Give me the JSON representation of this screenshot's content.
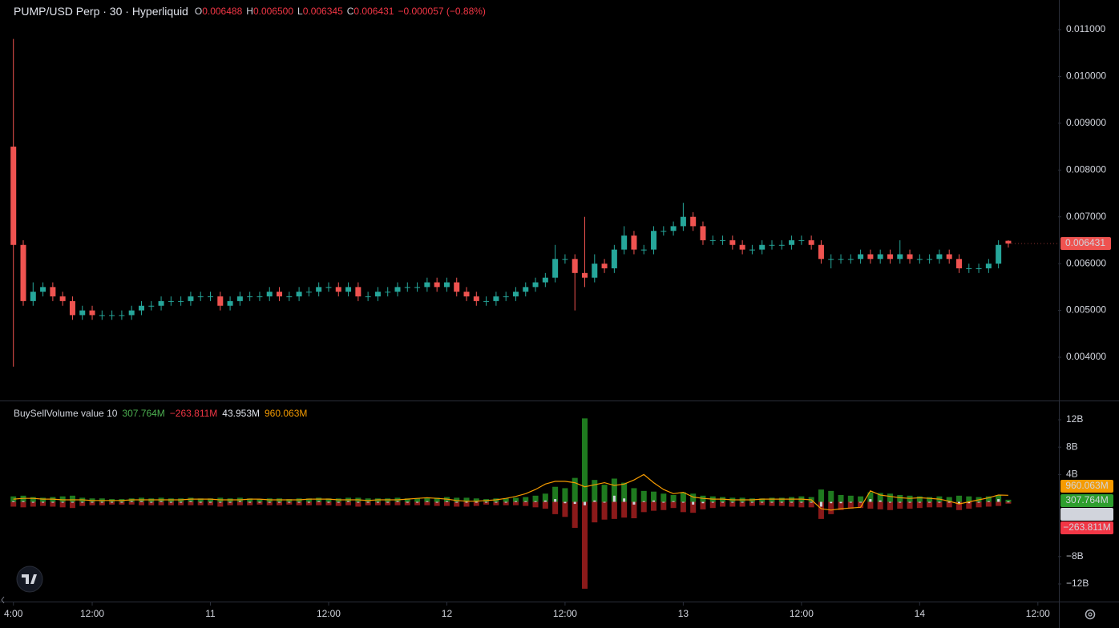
{
  "chart_data": [
    {
      "type": "candlestick",
      "title": "PUMP/USD Perp · 30 · Hyperliquid",
      "up_color": "#26a69a",
      "down_color": "#ef5350",
      "readout": [
        {
          "key": "O",
          "value_label": "0.006488"
        },
        {
          "key": "H",
          "value_label": "0.006500"
        },
        {
          "key": "L",
          "value_label": "0.006345"
        },
        {
          "key": "C",
          "value_label": "0.006431"
        }
      ],
      "change_label": "−0.000057 (−0.88%)",
      "last_price_label": "0.006431",
      "open": [
        0.0085,
        0.0064,
        0.0052,
        0.0054,
        0.0055,
        0.0053,
        0.0052,
        0.0049,
        0.005,
        0.0049,
        0.0049,
        0.0049,
        0.0049,
        0.005,
        0.0051,
        0.0051,
        0.0052,
        0.0052,
        0.0052,
        0.0053,
        0.0053,
        0.0053,
        0.0051,
        0.0052,
        0.0053,
        0.0053,
        0.0053,
        0.0054,
        0.0053,
        0.0053,
        0.0054,
        0.0054,
        0.0055,
        0.0055,
        0.0054,
        0.0055,
        0.0053,
        0.0053,
        0.0054,
        0.0054,
        0.0055,
        0.0055,
        0.0055,
        0.0056,
        0.0055,
        0.0056,
        0.0054,
        0.0053,
        0.0052,
        0.0052,
        0.0053,
        0.0053,
        0.0054,
        0.0055,
        0.0056,
        0.0057,
        0.0061,
        0.0061,
        0.0058,
        0.0057,
        0.006,
        0.0059,
        0.0063,
        0.0066,
        0.0063,
        0.0063,
        0.0067,
        0.0067,
        0.0068,
        0.007,
        0.0068,
        0.0065,
        0.0065,
        0.0065,
        0.0064,
        0.0063,
        0.0063,
        0.0064,
        0.0064,
        0.0064,
        0.0065,
        0.0065,
        0.0064,
        0.0061,
        0.0061,
        0.0061,
        0.0061,
        0.0062,
        0.0061,
        0.0062,
        0.0061,
        0.0062,
        0.0061,
        0.0061,
        0.0061,
        0.0062,
        0.0061,
        0.0059,
        0.0059,
        0.0059,
        0.006,
        0.006488
      ],
      "high": [
        0.0108,
        0.0065,
        0.0056,
        0.0056,
        0.0056,
        0.0054,
        0.0053,
        0.0051,
        0.0051,
        0.005,
        0.005,
        0.005,
        0.0051,
        0.0052,
        0.0052,
        0.0053,
        0.0053,
        0.0053,
        0.0054,
        0.0054,
        0.0054,
        0.0054,
        0.0053,
        0.0054,
        0.0054,
        0.0054,
        0.0055,
        0.0055,
        0.0054,
        0.0055,
        0.0055,
        0.0056,
        0.0056,
        0.0056,
        0.0056,
        0.0056,
        0.0054,
        0.0055,
        0.0055,
        0.0056,
        0.0056,
        0.0056,
        0.0057,
        0.0057,
        0.0057,
        0.0057,
        0.0055,
        0.0054,
        0.0053,
        0.0054,
        0.0054,
        0.0055,
        0.0056,
        0.0057,
        0.0058,
        0.0064,
        0.0062,
        0.0062,
        0.007,
        0.0062,
        0.0061,
        0.0064,
        0.0068,
        0.0067,
        0.0064,
        0.0068,
        0.0068,
        0.0069,
        0.0073,
        0.0071,
        0.0069,
        0.0066,
        0.0066,
        0.0066,
        0.0065,
        0.0064,
        0.0065,
        0.0065,
        0.0065,
        0.0066,
        0.0066,
        0.0066,
        0.0065,
        0.0062,
        0.0062,
        0.0062,
        0.0063,
        0.0063,
        0.0063,
        0.0063,
        0.0065,
        0.0063,
        0.0062,
        0.0062,
        0.0063,
        0.0063,
        0.0062,
        0.006,
        0.006,
        0.0061,
        0.0065,
        0.0065
      ],
      "low": [
        0.0038,
        0.0051,
        0.0051,
        0.0053,
        0.0052,
        0.0051,
        0.0048,
        0.0048,
        0.0048,
        0.0048,
        0.0048,
        0.0048,
        0.0048,
        0.0049,
        0.005,
        0.005,
        0.0051,
        0.0051,
        0.0051,
        0.0052,
        0.0052,
        0.005,
        0.005,
        0.0051,
        0.0052,
        0.0052,
        0.0052,
        0.0052,
        0.0052,
        0.0052,
        0.0053,
        0.0053,
        0.0054,
        0.0053,
        0.0053,
        0.0052,
        0.0052,
        0.0052,
        0.0053,
        0.0053,
        0.0054,
        0.0054,
        0.0054,
        0.0054,
        0.0054,
        0.0053,
        0.0052,
        0.0051,
        0.0051,
        0.0051,
        0.0052,
        0.0052,
        0.0053,
        0.0054,
        0.0055,
        0.0056,
        0.006,
        0.005,
        0.0055,
        0.0056,
        0.0058,
        0.0058,
        0.0062,
        0.0062,
        0.0062,
        0.0062,
        0.0066,
        0.0066,
        0.0067,
        0.0067,
        0.0064,
        0.0064,
        0.0064,
        0.0063,
        0.0062,
        0.0062,
        0.0062,
        0.0063,
        0.0063,
        0.0063,
        0.0064,
        0.0063,
        0.006,
        0.0059,
        0.006,
        0.006,
        0.006,
        0.006,
        0.006,
        0.006,
        0.006,
        0.006,
        0.006,
        0.006,
        0.006,
        0.006,
        0.0058,
        0.0058,
        0.0058,
        0.0058,
        0.0059,
        0.006345
      ],
      "close": [
        0.0064,
        0.0052,
        0.0054,
        0.0055,
        0.0053,
        0.0052,
        0.0049,
        0.005,
        0.0049,
        0.0049,
        0.0049,
        0.0049,
        0.005,
        0.0051,
        0.0051,
        0.0052,
        0.0052,
        0.0052,
        0.0053,
        0.0053,
        0.0053,
        0.0051,
        0.0052,
        0.0053,
        0.0053,
        0.0053,
        0.0054,
        0.0053,
        0.0053,
        0.0054,
        0.0054,
        0.0055,
        0.0055,
        0.0054,
        0.0055,
        0.0053,
        0.0053,
        0.0054,
        0.0054,
        0.0055,
        0.0055,
        0.0055,
        0.0056,
        0.0055,
        0.0056,
        0.0054,
        0.0053,
        0.0052,
        0.0052,
        0.0053,
        0.0053,
        0.0054,
        0.0055,
        0.0056,
        0.0057,
        0.0061,
        0.0061,
        0.0058,
        0.0057,
        0.006,
        0.0059,
        0.0063,
        0.0066,
        0.0063,
        0.0063,
        0.0067,
        0.0067,
        0.0068,
        0.007,
        0.0068,
        0.0065,
        0.0065,
        0.0065,
        0.0064,
        0.0063,
        0.0063,
        0.0064,
        0.0064,
        0.0064,
        0.0065,
        0.0065,
        0.0064,
        0.0061,
        0.0061,
        0.0061,
        0.0061,
        0.0062,
        0.0061,
        0.0062,
        0.0061,
        0.0062,
        0.0061,
        0.0061,
        0.0061,
        0.0062,
        0.0061,
        0.0059,
        0.0059,
        0.0059,
        0.006,
        0.0064,
        0.006431
      ],
      "ylim": [
        0.003076,
        0.011633
      ],
      "yticks": [
        {
          "value": 0.004,
          "label": "0.004000"
        },
        {
          "value": 0.005,
          "label": "0.005000"
        },
        {
          "value": 0.006,
          "label": "0.006000"
        },
        {
          "value": 0.007,
          "label": "0.007000"
        },
        {
          "value": 0.008,
          "label": "0.008000"
        },
        {
          "value": 0.009,
          "label": "0.009000"
        },
        {
          "value": 0.01,
          "label": "0.010000"
        },
        {
          "value": 0.011,
          "label": "0.011000"
        }
      ],
      "xlim": [
        -1.36,
        106.05
      ],
      "xticks": [
        {
          "value": 0,
          "label": "4:00"
        },
        {
          "value": 8,
          "label": "12:00"
        },
        {
          "value": 20,
          "label": "11"
        },
        {
          "value": 32,
          "label": "12:00"
        },
        {
          "value": 44,
          "label": "12"
        },
        {
          "value": 56,
          "label": "12:00"
        },
        {
          "value": 68,
          "label": "13"
        },
        {
          "value": 80,
          "label": "12:00"
        },
        {
          "value": 92,
          "label": "14"
        },
        {
          "value": 104,
          "label": "12:00"
        }
      ]
    },
    {
      "type": "volume",
      "title": "BuySellVolume value 10",
      "series": [
        {
          "name": "Buy",
          "type": "bar",
          "color": "#1f7a1f",
          "text_color": "#4caf50",
          "last_value_label": "307.764M",
          "values": [
            0.8,
            0.9,
            0.7,
            0.6,
            0.7,
            0.8,
            0.9,
            0.6,
            0.5,
            0.5,
            0.4,
            0.4,
            0.5,
            0.6,
            0.5,
            0.6,
            0.5,
            0.5,
            0.6,
            0.5,
            0.5,
            0.6,
            0.5,
            0.6,
            0.5,
            0.4,
            0.5,
            0.5,
            0.4,
            0.5,
            0.5,
            0.6,
            0.5,
            0.5,
            0.6,
            0.6,
            0.5,
            0.5,
            0.5,
            0.6,
            0.5,
            0.5,
            0.6,
            0.6,
            0.7,
            0.6,
            0.6,
            0.5,
            0.4,
            0.5,
            0.5,
            0.6,
            0.7,
            0.9,
            1.2,
            2.2,
            2.0,
            3.5,
            12.2,
            3.2,
            2.5,
            3.4,
            2.8,
            2.0,
            1.6,
            1.5,
            1.2,
            1.0,
            1.4,
            1.2,
            0.9,
            0.8,
            0.7,
            0.6,
            0.6,
            0.5,
            0.5,
            0.6,
            0.6,
            0.7,
            0.8,
            0.7,
            1.8,
            1.6,
            1.0,
            0.9,
            0.8,
            1.4,
            1.3,
            1.2,
            1.0,
            0.9,
            0.8,
            0.7,
            0.8,
            0.7,
            0.9,
            0.8,
            0.7,
            0.8,
            1.0,
            0.307764
          ]
        },
        {
          "name": "Sell",
          "type": "bar",
          "color": "#8b1a1a",
          "text_color": "#f23645",
          "last_value_label": "−263.811M",
          "values": [
            -0.7,
            -0.8,
            -0.7,
            -0.6,
            -0.7,
            -0.8,
            -0.9,
            -0.6,
            -0.5,
            -0.5,
            -0.4,
            -0.4,
            -0.4,
            -0.5,
            -0.5,
            -0.5,
            -0.5,
            -0.5,
            -0.5,
            -0.5,
            -0.5,
            -0.7,
            -0.5,
            -0.5,
            -0.5,
            -0.4,
            -0.5,
            -0.5,
            -0.4,
            -0.5,
            -0.5,
            -0.5,
            -0.5,
            -0.6,
            -0.5,
            -0.7,
            -0.5,
            -0.5,
            -0.5,
            -0.5,
            -0.5,
            -0.5,
            -0.5,
            -0.6,
            -0.6,
            -0.7,
            -0.7,
            -0.6,
            -0.4,
            -0.5,
            -0.5,
            -0.5,
            -0.6,
            -0.8,
            -1.0,
            -1.8,
            -2.2,
            -3.8,
            -12.7,
            -3.0,
            -2.6,
            -2.5,
            -2.3,
            -2.4,
            -1.5,
            -1.3,
            -1.2,
            -0.9,
            -1.5,
            -1.6,
            -1.1,
            -0.9,
            -0.7,
            -0.7,
            -0.7,
            -0.6,
            -0.5,
            -0.6,
            -0.6,
            -0.7,
            -0.8,
            -0.8,
            -2.5,
            -1.8,
            -1.2,
            -1.0,
            -0.9,
            -1.0,
            -1.1,
            -1.2,
            -1.0,
            -1.0,
            -0.9,
            -0.8,
            -0.8,
            -0.8,
            -1.2,
            -1.0,
            -0.8,
            -0.7,
            -0.6,
            -0.263811
          ]
        },
        {
          "name": "Delta",
          "type": "bar",
          "color": "#d1d4dc",
          "text_color": "#e0e3eb",
          "last_value_label": "43.953M",
          "values": [
            0.1,
            0.1,
            0,
            0,
            0,
            0,
            0,
            0,
            0,
            0,
            0,
            0,
            0.1,
            0.1,
            0,
            0.1,
            0,
            0,
            0.1,
            0,
            0,
            -0.1,
            0,
            0.1,
            0,
            0,
            0,
            0,
            0,
            0,
            0,
            0.1,
            0,
            -0.1,
            0.1,
            -0.1,
            0,
            0,
            0,
            0.1,
            0,
            0,
            0.1,
            0,
            0.1,
            -0.1,
            -0.1,
            -0.1,
            0,
            0,
            0,
            0.1,
            0.1,
            0.1,
            0.2,
            0.4,
            -0.2,
            -0.3,
            -0.5,
            0.2,
            -0.1,
            0.9,
            0.5,
            -0.4,
            0.1,
            0.2,
            0,
            0.1,
            -0.1,
            -0.4,
            -0.2,
            -0.1,
            0,
            -0.1,
            -0.1,
            -0.1,
            0,
            0,
            0,
            0,
            0,
            -0.1,
            -0.7,
            -0.2,
            -0.2,
            -0.1,
            -0.1,
            0.4,
            0.2,
            0,
            0,
            -0.1,
            -0.1,
            -0.1,
            0,
            -0.1,
            -0.3,
            -0.2,
            -0.1,
            0.1,
            0.4,
            0.043953
          ]
        },
        {
          "name": "Value",
          "type": "line",
          "color": "#f59b00",
          "text_color": "#f59b00",
          "last_value_label": "960.063M",
          "values": [
            0.4,
            0.5,
            0.5,
            0.4,
            0.4,
            0.3,
            0.3,
            0.3,
            0.2,
            0.2,
            0.2,
            0.2,
            0.3,
            0.3,
            0.3,
            0.3,
            0.3,
            0.3,
            0.4,
            0.4,
            0.4,
            0.3,
            0.3,
            0.3,
            0.4,
            0.4,
            0.3,
            0.3,
            0.3,
            0.3,
            0.4,
            0.4,
            0.4,
            0.3,
            0.3,
            0.3,
            0.2,
            0.3,
            0.3,
            0.3,
            0.4,
            0.5,
            0.6,
            0.5,
            0.4,
            0.2,
            0.1,
            0.1,
            0.2,
            0.3,
            0.5,
            0.8,
            1.2,
            1.8,
            2.6,
            3.0,
            3.0,
            2.8,
            2.2,
            2.5,
            2.8,
            2.4,
            2.6,
            3.2,
            4.0,
            2.8,
            1.8,
            1.2,
            1.4,
            0.7,
            0.5,
            0.4,
            0.4,
            0.3,
            0.3,
            0.3,
            0.4,
            0.4,
            0.4,
            0.4,
            0.4,
            0.3,
            -1.0,
            -1.2,
            -1.0,
            -0.9,
            -0.8,
            1.6,
            1.0,
            0.8,
            0.6,
            0.5,
            0.6,
            0.5,
            0.4,
            0.1,
            -0.3,
            0.0,
            0.3,
            0.6,
            1.0,
            0.960063
          ]
        }
      ],
      "ylim": [
        -14.46,
        14.58
      ],
      "yticks": [
        {
          "value": -12,
          "label": "−12B"
        },
        {
          "value": -8,
          "label": "−8B"
        },
        {
          "value": 4,
          "label": "4B"
        },
        {
          "value": 8,
          "label": "8B"
        },
        {
          "value": 12,
          "label": "12B"
        }
      ]
    }
  ]
}
